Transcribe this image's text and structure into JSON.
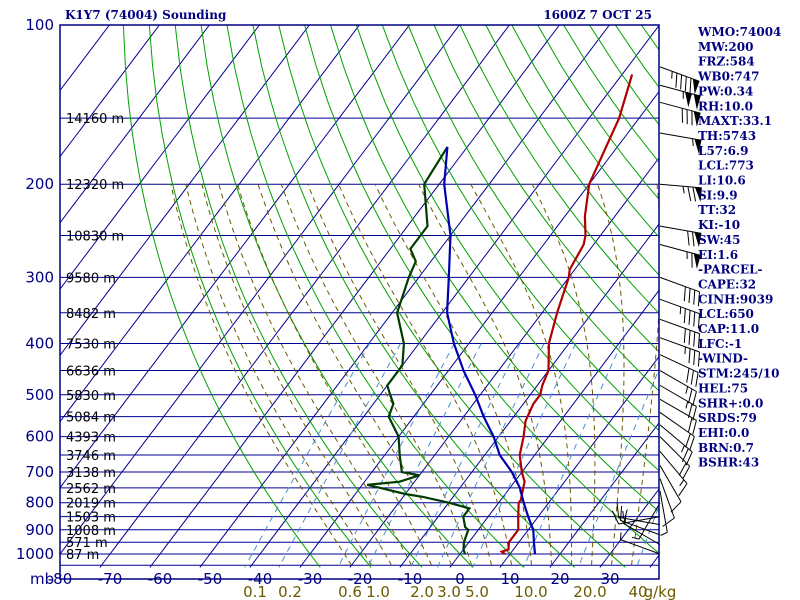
{
  "header": {
    "title": "K1Y7 (74004) Sounding",
    "datetime": "1600Z  7 OCT 25"
  },
  "chart_data": {
    "type": "line",
    "subtype": "skew-t log-p sounding",
    "y_unit_label": "mb",
    "pressure_ticks": [
      100,
      200,
      300,
      400,
      500,
      600,
      700,
      800,
      900,
      1000
    ],
    "temperature_ticks": [
      -80,
      -70,
      -60,
      -50,
      -40,
      -30,
      -20,
      -10,
      0,
      10,
      20,
      30
    ],
    "mixing_ratio_labels": [
      "0.1",
      "0.2",
      "0.6",
      "1.0",
      "2.0",
      "3.0",
      "5.0",
      "10.0",
      "20.0",
      "40",
      "g/kg"
    ],
    "mixing_ratio_values": [
      0.1,
      0.2,
      0.6,
      1.0,
      2.0,
      3.0,
      5.0,
      10.0,
      20.0,
      40.0
    ],
    "height_labels": [
      {
        "p": 150,
        "text": "14160 m"
      },
      {
        "p": 200,
        "text": "12320 m"
      },
      {
        "p": 250,
        "text": "10830 m"
      },
      {
        "p": 300,
        "text": "9580 m"
      },
      {
        "p": 350,
        "text": "8482 m"
      },
      {
        "p": 400,
        "text": "7530 m"
      },
      {
        "p": 450,
        "text": "6636 m"
      },
      {
        "p": 500,
        "text": "5830 m"
      },
      {
        "p": 550,
        "text": "5084 m"
      },
      {
        "p": 600,
        "text": "4393 m"
      },
      {
        "p": 650,
        "text": "3746 m"
      },
      {
        "p": 700,
        "text": "3138 m"
      },
      {
        "p": 750,
        "text": "2562 m"
      },
      {
        "p": 800,
        "text": "2019 m"
      },
      {
        "p": 850,
        "text": "1503 m"
      },
      {
        "p": 900,
        "text": "1008 m"
      },
      {
        "p": 950,
        "text": "571 m"
      },
      {
        "p": 1000,
        "text": "87 m"
      }
    ],
    "series": [
      {
        "color": "#b00000",
        "points": [
          [
            124,
            -38
          ],
          [
            150,
            -34
          ],
          [
            200,
            -30
          ],
          [
            230,
            -26
          ],
          [
            250,
            -23
          ],
          [
            260,
            -22
          ],
          [
            290,
            -21
          ],
          [
            300,
            -20
          ],
          [
            350,
            -17
          ],
          [
            400,
            -14
          ],
          [
            450,
            -10
          ],
          [
            480,
            -9
          ],
          [
            500,
            -8
          ],
          [
            520,
            -8
          ],
          [
            560,
            -7
          ],
          [
            600,
            -5
          ],
          [
            650,
            -3
          ],
          [
            700,
            0
          ],
          [
            730,
            2
          ],
          [
            760,
            3
          ],
          [
            790,
            4
          ],
          [
            800,
            4
          ],
          [
            850,
            6
          ],
          [
            900,
            8
          ],
          [
            950,
            8
          ],
          [
            980,
            9
          ],
          [
            990,
            8
          ],
          [
            1000,
            9
          ]
        ]
      },
      {
        "color": "#003c00",
        "points": [
          [
            170,
            -64
          ],
          [
            200,
            -63
          ],
          [
            240,
            -56
          ],
          [
            250,
            -56
          ],
          [
            265,
            -56
          ],
          [
            280,
            -53
          ],
          [
            300,
            -52
          ],
          [
            350,
            -49
          ],
          [
            400,
            -43
          ],
          [
            440,
            -40
          ],
          [
            480,
            -40
          ],
          [
            500,
            -38
          ],
          [
            520,
            -36
          ],
          [
            550,
            -35
          ],
          [
            600,
            -30
          ],
          [
            650,
            -27
          ],
          [
            700,
            -24
          ],
          [
            710,
            -20
          ],
          [
            730,
            -23
          ],
          [
            740,
            -29
          ],
          [
            770,
            -20
          ],
          [
            780,
            -16
          ],
          [
            800,
            -10
          ],
          [
            820,
            -5
          ],
          [
            850,
            -5
          ],
          [
            890,
            -3
          ],
          [
            900,
            -2
          ],
          [
            950,
            -1
          ],
          [
            980,
            0
          ],
          [
            1000,
            1
          ]
        ]
      },
      {
        "color": "#0000b0",
        "points": [
          [
            170,
            -64
          ],
          [
            200,
            -59
          ],
          [
            250,
            -50
          ],
          [
            300,
            -44
          ],
          [
            350,
            -39
          ],
          [
            400,
            -33
          ],
          [
            450,
            -27
          ],
          [
            500,
            -21
          ],
          [
            550,
            -16
          ],
          [
            600,
            -11
          ],
          [
            650,
            -7
          ],
          [
            700,
            -2
          ],
          [
            750,
            2
          ],
          [
            800,
            5
          ],
          [
            850,
            8
          ],
          [
            900,
            11
          ],
          [
            950,
            13
          ],
          [
            1000,
            15
          ]
        ]
      }
    ],
    "wind_barbs": [
      {
        "p": 120,
        "dir": 290,
        "speed": 95
      },
      {
        "p": 130,
        "dir": 285,
        "speed": 105
      },
      {
        "p": 140,
        "dir": 285,
        "speed": 80
      },
      {
        "p": 160,
        "dir": 280,
        "speed": 55
      },
      {
        "p": 200,
        "dir": 275,
        "speed": 75
      },
      {
        "p": 240,
        "dir": 280,
        "speed": 70
      },
      {
        "p": 260,
        "dir": 285,
        "speed": 65
      },
      {
        "p": 300,
        "dir": 290,
        "speed": 40
      },
      {
        "p": 330,
        "dir": 290,
        "speed": 45
      },
      {
        "p": 360,
        "dir": 290,
        "speed": 40
      },
      {
        "p": 390,
        "dir": 290,
        "speed": 35
      },
      {
        "p": 420,
        "dir": 295,
        "speed": 30
      },
      {
        "p": 450,
        "dir": 300,
        "speed": 25
      },
      {
        "p": 480,
        "dir": 300,
        "speed": 25
      },
      {
        "p": 510,
        "dir": 300,
        "speed": 20
      },
      {
        "p": 540,
        "dir": 305,
        "speed": 20
      },
      {
        "p": 570,
        "dir": 310,
        "speed": 25
      },
      {
        "p": 600,
        "dir": 315,
        "speed": 20
      },
      {
        "p": 640,
        "dir": 320,
        "speed": 15
      },
      {
        "p": 680,
        "dir": 330,
        "speed": 10
      },
      {
        "p": 720,
        "dir": 340,
        "speed": 10
      },
      {
        "p": 760,
        "dir": 350,
        "speed": 5
      },
      {
        "p": 800,
        "dir": 30,
        "speed": 5
      },
      {
        "p": 850,
        "dir": 80,
        "speed": 10
      },
      {
        "p": 880,
        "dir": 100,
        "speed": 15
      },
      {
        "p": 920,
        "dir": 110,
        "speed": 15
      },
      {
        "p": 960,
        "dir": 120,
        "speed": 10
      },
      {
        "p": 1000,
        "dir": 110,
        "speed": 5
      }
    ],
    "grid": true
  },
  "indices": [
    "WMO:74004",
    "MW:200",
    "FRZ:584",
    "WB0:747",
    "PW:0.34",
    "RH:10.0",
    "MAXT:33.1",
    "TH:5743",
    "L57:6.9",
    "LCL:773",
    "LI:10.6",
    "SI:9.9",
    "TT:32",
    "KI:-10",
    "SW:45",
    "EI:1.6",
    "-PARCEL-",
    "CAPE:32",
    "CINH:9039",
    "LCL:650",
    "CAP:11.0",
    "LFC:-1",
    "-WIND-",
    "STM:245/10",
    "HEL:75",
    "SHR+:0.0",
    "SRDS:79",
    "EHI:0.0",
    "BRN:0.7",
    "BSHR:43"
  ],
  "colors": {
    "frame": "#000080",
    "isobar": "#000090",
    "isotherm": "#000090",
    "dry_adiabat": "#00a000",
    "moist_adiabat": "#6b5a00",
    "mixing_ratio": "#4a90d0"
  }
}
